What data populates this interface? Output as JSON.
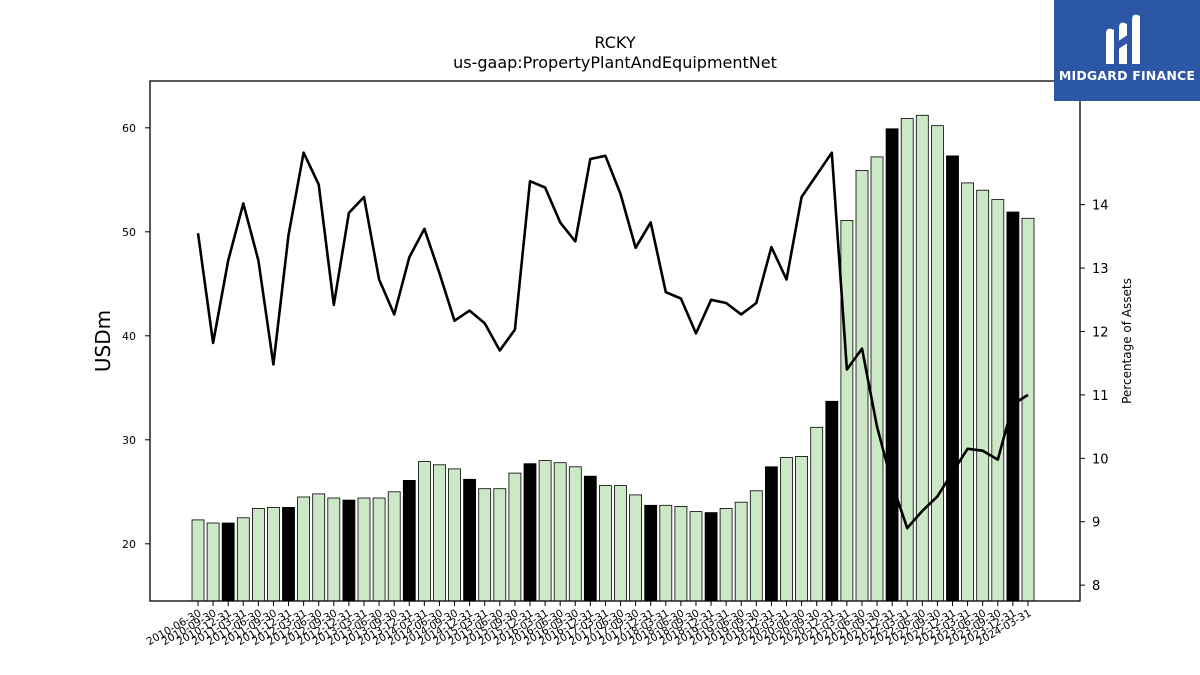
{
  "chart_data": {
    "type": "bar+line",
    "title": "RCKY",
    "subtitle": "us-gaap:PropertyPlantAndEquipmentNet",
    "ylabel": "USDm",
    "y2label": "Percentage of Assets",
    "ylim": [
      14.5,
      64.5
    ],
    "y2lim": [
      7.75,
      15.95
    ],
    "yticks": [
      20,
      30,
      40,
      50,
      60
    ],
    "y2ticks": [
      8,
      9,
      10,
      11,
      12,
      13,
      14
    ],
    "bar_fill": "#cce8c6",
    "bar_fill_highlight": "#000000",
    "line_color": "#000000",
    "categories": [
      "2010-06-30",
      "2010-09-30",
      "2010-12-31",
      "2011-03-31",
      "2011-06-30",
      "2011-09-30",
      "2011-12-31",
      "2012-03-31",
      "2012-06-30",
      "2012-09-30",
      "2012-12-31",
      "2013-03-31",
      "2013-06-30",
      "2013-09-30",
      "2013-12-31",
      "2014-03-31",
      "2014-06-30",
      "2014-09-30",
      "2014-12-31",
      "2015-03-31",
      "2015-06-30",
      "2015-09-30",
      "2015-12-31",
      "2016-03-31",
      "2016-06-30",
      "2016-09-30",
      "2016-12-31",
      "2017-03-31",
      "2017-06-30",
      "2017-09-30",
      "2017-12-31",
      "2018-03-31",
      "2018-06-30",
      "2018-09-30",
      "2018-12-31",
      "2019-03-31",
      "2019-06-30",
      "2019-09-30",
      "2019-12-31",
      "2020-03-31",
      "2020-06-30",
      "2020-09-30",
      "2020-12-31",
      "2021-03-31",
      "2021-06-30",
      "2021-09-30",
      "2021-12-31",
      "2022-03-31",
      "2022-06-30",
      "2022-09-30",
      "2022-12-31",
      "2023-03-31",
      "2023-06-30",
      "2023-09-30",
      "2023-12-31",
      "2024-03-31"
    ],
    "series": [
      {
        "kind": "bar",
        "values": [
          22.3,
          22.0,
          22.0,
          22.5,
          23.4,
          23.5,
          23.5,
          24.5,
          24.8,
          24.4,
          24.2,
          24.4,
          24.4,
          25.0,
          26.1,
          27.9,
          27.6,
          27.2,
          26.2,
          25.3,
          25.3,
          26.8,
          27.7,
          28.0,
          27.8,
          27.4,
          26.5,
          25.6,
          25.6,
          24.7,
          23.7,
          23.7,
          23.6,
          23.1,
          23.0,
          23.4,
          24.0,
          25.1,
          27.4,
          28.3,
          28.4,
          31.2,
          33.7,
          51.1,
          55.9,
          57.2,
          59.9,
          60.9,
          61.2,
          60.2,
          57.3,
          54.7,
          54.0,
          53.1,
          51.9,
          51.3
        ],
        "highlight": [
          false,
          false,
          true,
          false,
          false,
          false,
          true,
          false,
          false,
          false,
          true,
          false,
          false,
          false,
          true,
          false,
          false,
          false,
          true,
          false,
          false,
          false,
          true,
          false,
          false,
          false,
          true,
          false,
          false,
          false,
          true,
          false,
          false,
          false,
          true,
          false,
          false,
          false,
          true,
          false,
          false,
          false,
          true,
          false,
          false,
          false,
          true,
          false,
          false,
          false,
          true,
          false,
          false,
          false,
          true,
          false
        ]
      },
      {
        "kind": "line",
        "axis": "right",
        "values": [
          13.55,
          11.82,
          13.12,
          14.02,
          13.12,
          11.48,
          13.52,
          14.82,
          14.32,
          12.42,
          13.87,
          14.12,
          12.82,
          12.27,
          13.17,
          13.62,
          12.92,
          12.17,
          12.33,
          12.13,
          11.7,
          12.03,
          14.37,
          14.27,
          13.72,
          13.42,
          14.72,
          14.77,
          14.17,
          13.32,
          13.72,
          12.62,
          12.52,
          11.97,
          12.5,
          12.45,
          12.27,
          12.45,
          13.33,
          12.82,
          14.12,
          14.47,
          14.82,
          11.4,
          11.73,
          10.5,
          9.6,
          8.9,
          9.17,
          9.4,
          9.78,
          10.15,
          10.12,
          9.98,
          10.85,
          11.0
        ]
      }
    ],
    "grid": false,
    "legend": "none"
  },
  "logo": {
    "text": "MIDGARD FINANCE"
  }
}
